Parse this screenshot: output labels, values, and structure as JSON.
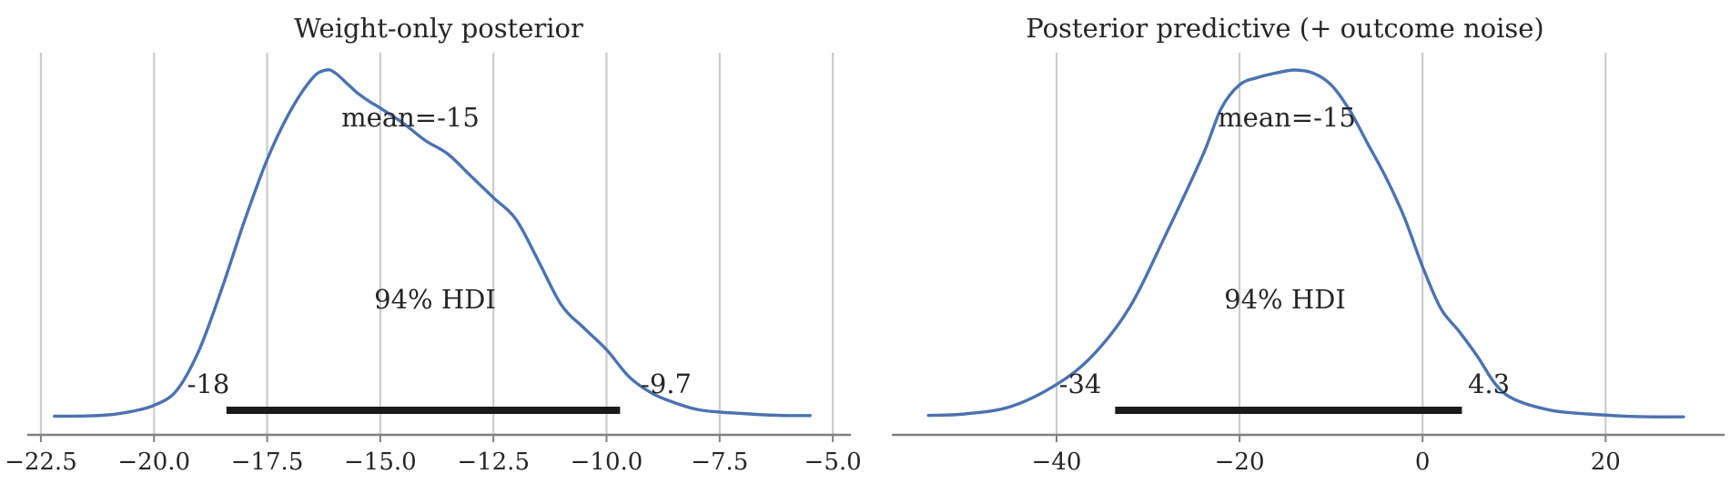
{
  "chart_data": [
    {
      "type": "line",
      "title": "Weight-only posterior",
      "xlim": [
        -22.8,
        -4.6
      ],
      "xticks": [
        -22.5,
        -20.0,
        -17.5,
        -15.0,
        -12.5,
        -10.0,
        -7.5,
        -5.0
      ],
      "xtick_labels": [
        "−22.5",
        "−20.0",
        "−17.5",
        "−15.0",
        "−12.5",
        "−10.0",
        "−7.5",
        "−5.0"
      ],
      "grid": true,
      "line_color": "#4c72b0",
      "series": [
        {
          "x": [
            -22.2,
            -21.5,
            -21.0,
            -20.5,
            -20.0,
            -19.5,
            -19.0,
            -18.5,
            -18.0,
            -17.5,
            -17.0,
            -16.5,
            -16.2,
            -16.0,
            -15.7,
            -15.5,
            -15.2,
            -15.0,
            -14.5,
            -14.0,
            -13.5,
            -13.0,
            -12.5,
            -12.0,
            -11.5,
            -11.0,
            -10.5,
            -10.0,
            -9.5,
            -9.0,
            -8.5,
            -8.0,
            -7.5,
            -7.0,
            -6.5,
            -6.0,
            -5.5
          ],
          "y": [
            0.001,
            0.0012,
            0.002,
            0.0045,
            0.009,
            0.02,
            0.05,
            0.095,
            0.145,
            0.19,
            0.225,
            0.25,
            0.256,
            0.254,
            0.245,
            0.239,
            0.232,
            0.228,
            0.217,
            0.204,
            0.194,
            0.178,
            0.162,
            0.146,
            0.115,
            0.083,
            0.066,
            0.05,
            0.03,
            0.018,
            0.011,
            0.006,
            0.004,
            0.003,
            0.002,
            0.0015,
            0.0015
          ]
        }
      ],
      "point_estimate": {
        "label": "mean=-15",
        "value": -15
      },
      "hdi": {
        "label": "94% HDI",
        "low": -18.4,
        "high": -9.7,
        "low_label": "-18",
        "high_label": "-9.7",
        "color": "#1a1a1a"
      }
    },
    {
      "type": "line",
      "title": "Posterior predictive (+ outcome noise)",
      "xlim": [
        -58,
        33
      ],
      "xticks": [
        -40,
        -20,
        0,
        20
      ],
      "xtick_labels": [
        "−40",
        "−20",
        "0",
        "20"
      ],
      "grid": true,
      "line_color": "#4c72b0",
      "series": [
        {
          "x": [
            -54,
            -50,
            -45,
            -40,
            -36,
            -32,
            -28,
            -24,
            -22,
            -20,
            -18,
            -16,
            -14,
            -12,
            -10,
            -8,
            -6,
            -4,
            -2,
            0,
            2,
            4,
            6,
            8,
            10,
            14,
            18,
            22,
            25,
            28.5
          ],
          "y": [
            0.0003,
            0.0005,
            0.0015,
            0.0045,
            0.0085,
            0.015,
            0.025,
            0.0357,
            0.042,
            0.0452,
            0.0462,
            0.0468,
            0.0472,
            0.0468,
            0.0452,
            0.0418,
            0.0372,
            0.0326,
            0.0272,
            0.0205,
            0.0148,
            0.0117,
            0.0083,
            0.0045,
            0.0025,
            0.001,
            0.0005,
            0.0002,
            0.0001,
            0.0001
          ]
        }
      ],
      "point_estimate": {
        "label": "mean=-15",
        "value": -15
      },
      "hdi": {
        "label": "94% HDI",
        "low": -33.6,
        "high": 4.3,
        "low_label": "-34",
        "high_label": "4.3",
        "color": "#1a1a1a"
      }
    }
  ]
}
